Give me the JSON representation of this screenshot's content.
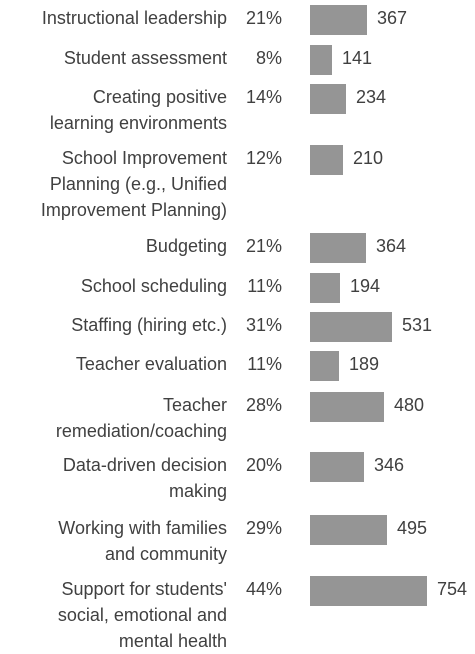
{
  "chart_data": {
    "type": "bar",
    "orientation": "horizontal",
    "categories": [
      [
        "Instructional leadership"
      ],
      [
        "Student assessment"
      ],
      [
        "Creating positive",
        "learning environments"
      ],
      [
        "School Improvement",
        "Planning (e.g., Unified",
        "Improvement Planning)"
      ],
      [
        "Budgeting"
      ],
      [
        "School scheduling"
      ],
      [
        "Staffing (hiring etc.)"
      ],
      [
        "Teacher evaluation"
      ],
      [
        "Teacher",
        "remediation/coaching"
      ],
      [
        "Data-driven decision",
        "making"
      ],
      [
        "Working with families",
        "and community"
      ],
      [
        "Support for students'",
        "social, emotional and",
        "mental health"
      ]
    ],
    "percents": [
      "21%",
      "8%",
      "14%",
      "12%",
      "21%",
      "11%",
      "31%",
      "11%",
      "28%",
      "20%",
      "29%",
      "44%"
    ],
    "values": [
      367,
      141,
      234,
      210,
      364,
      194,
      531,
      189,
      480,
      346,
      495,
      754
    ],
    "xlim": [
      0,
      754
    ],
    "bar_color": "#959595",
    "text_color": "#404040",
    "grid": false,
    "legend": "none"
  }
}
